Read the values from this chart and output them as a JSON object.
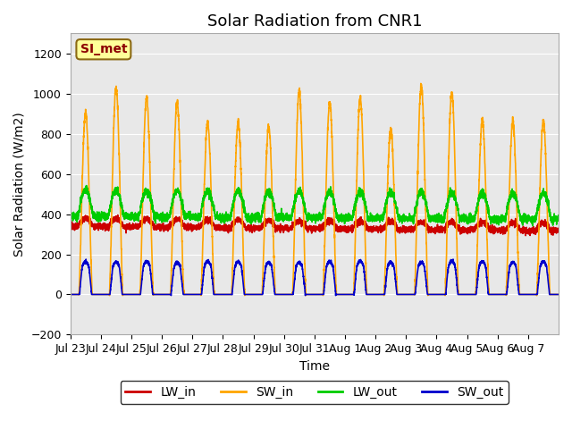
{
  "title": "Solar Radiation from CNR1",
  "xlabel": "Time",
  "ylabel": "Solar Radiation (W/m2)",
  "ylim": [
    -200,
    1300
  ],
  "yticks": [
    -200,
    0,
    200,
    400,
    600,
    800,
    1000,
    1200
  ],
  "background_color": "#ffffff",
  "plot_bg_color": "#e8e8e8",
  "annotation_text": "SI_met",
  "annotation_bg": "#ffff99",
  "annotation_border": "#8b6914",
  "series": {
    "LW_in": {
      "color": "#cc0000",
      "lw": 1.2
    },
    "SW_in": {
      "color": "#ffa500",
      "lw": 1.2
    },
    "LW_out": {
      "color": "#00cc00",
      "lw": 1.2
    },
    "SW_out": {
      "color": "#0000cc",
      "lw": 1.2
    }
  },
  "x_tick_labels": [
    "Jul 23",
    "Jul 24",
    "Jul 25",
    "Jul 26",
    "Jul 27",
    "Jul 28",
    "Jul 29",
    "Jul 30",
    "Jul 31",
    "Aug 1",
    "Aug 2",
    "Aug 3",
    "Aug 4",
    "Aug 5",
    "Aug 6",
    "Aug 7"
  ],
  "num_days": 16,
  "points_per_day": 288,
  "title_fontsize": 13,
  "axis_label_fontsize": 10,
  "tick_fontsize": 9,
  "legend_fontsize": 10,
  "grid_color": "#ffffff",
  "grid_lw": 0.8,
  "grid_alpha": 1.0
}
